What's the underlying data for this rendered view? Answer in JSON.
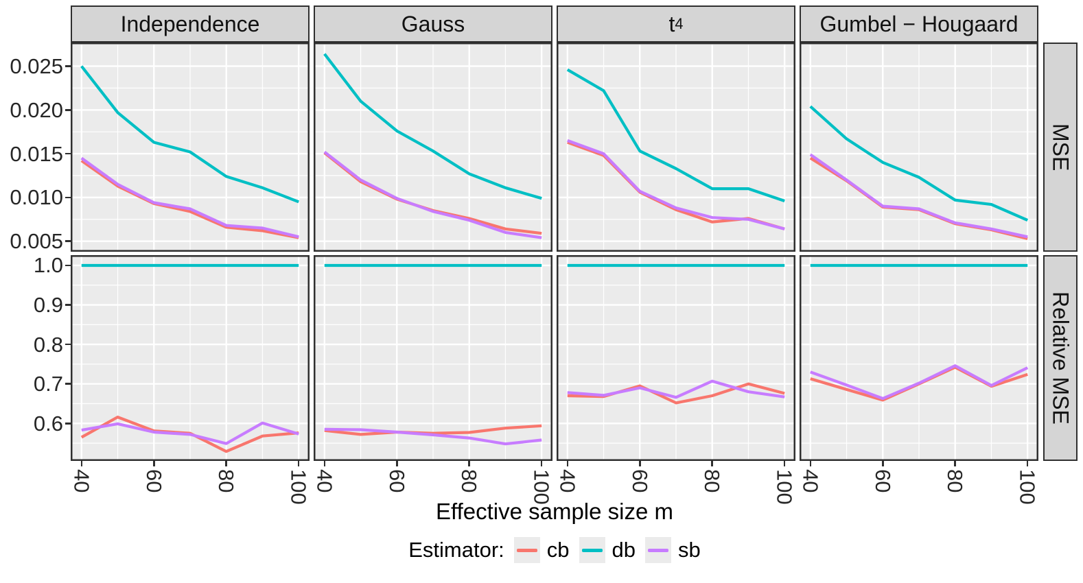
{
  "figure": {
    "x_axis_title": "Effective sample size m",
    "legend_title": "Estimator:",
    "legend": [
      {
        "label": "cb",
        "color": "#F8766D"
      },
      {
        "label": "db",
        "color": "#00BFC4"
      },
      {
        "label": "sb",
        "color": "#C77CFF"
      }
    ],
    "style": {
      "panel_bg": "#EBEBEB",
      "grid_color": "#FFFFFF",
      "panel_border": "#2f2f2f",
      "strip_bg": "#D5D5D5"
    }
  },
  "chart_data": {
    "type": "line",
    "x": [
      40,
      50,
      60,
      70,
      80,
      90,
      100
    ],
    "xlim": [
      37,
      103
    ],
    "x_major_ticks": [
      40,
      60,
      80,
      100
    ],
    "x_major_tick_labels": [
      "40",
      "60",
      "80",
      "100"
    ],
    "x_minor_gridlines": [
      50,
      70,
      90
    ],
    "xlabel": "Effective sample size m",
    "legend_position": "bottom",
    "grid": "on",
    "columns": [
      {
        "text": "Independence"
      },
      {
        "text": "Gauss"
      },
      {
        "text": "t",
        "subscript": "4"
      },
      {
        "text": "Gumbel − Hougaard"
      }
    ],
    "rows": [
      {
        "label": "MSE",
        "ylim": [
          0.0038,
          0.0277
        ],
        "yticks": [
          0.005,
          0.01,
          0.015,
          0.02,
          0.025
        ],
        "ytick_labels": [
          "0.005",
          "0.010",
          "0.015",
          "0.020",
          "0.025"
        ],
        "yminor": [
          0.0075,
          0.0125,
          0.0175,
          0.0225,
          0.0275
        ]
      },
      {
        "label": "Relative MSE",
        "ylim": [
          0.505,
          1.026
        ],
        "yticks": [
          0.6,
          0.7,
          0.8,
          0.9,
          1.0
        ],
        "ytick_labels": [
          "0.6",
          "0.7",
          "0.8",
          "0.9",
          "1.0"
        ],
        "yminor": [
          0.55,
          0.65,
          0.75,
          0.85,
          0.95
        ]
      }
    ],
    "series_order": [
      "cb",
      "db",
      "sb"
    ],
    "panels": [
      {
        "column": "Independence",
        "row": "MSE",
        "col_index": 0,
        "row_index": 0,
        "series": {
          "cb": [
            0.0142,
            0.0113,
            0.0093,
            0.0084,
            0.0066,
            0.0062,
            0.0054
          ],
          "db": [
            0.025,
            0.0197,
            0.0163,
            0.0152,
            0.0124,
            0.0111,
            0.0095
          ],
          "sb": [
            0.0145,
            0.0115,
            0.0094,
            0.0087,
            0.0068,
            0.0065,
            0.0055
          ]
        }
      },
      {
        "column": "Gauss",
        "row": "MSE",
        "col_index": 1,
        "row_index": 0,
        "series": {
          "cb": [
            0.0151,
            0.0118,
            0.0098,
            0.0085,
            0.0076,
            0.0064,
            0.0059
          ],
          "db": [
            0.0264,
            0.021,
            0.0176,
            0.0153,
            0.0127,
            0.0111,
            0.0099
          ],
          "sb": [
            0.0152,
            0.012,
            0.0099,
            0.0084,
            0.0074,
            0.006,
            0.0054
          ]
        }
      },
      {
        "column": "t4",
        "row": "MSE",
        "col_index": 2,
        "row_index": 0,
        "series": {
          "cb": [
            0.0163,
            0.0148,
            0.0106,
            0.0086,
            0.0072,
            0.0076,
            0.0064
          ],
          "db": [
            0.0246,
            0.0222,
            0.0153,
            0.0133,
            0.011,
            0.011,
            0.0096
          ],
          "sb": [
            0.0165,
            0.015,
            0.0107,
            0.0088,
            0.0077,
            0.0075,
            0.0064
          ]
        }
      },
      {
        "column": "Gumbel-Hougaard",
        "row": "MSE",
        "col_index": 3,
        "row_index": 0,
        "series": {
          "cb": [
            0.0145,
            0.0119,
            0.0089,
            0.0086,
            0.007,
            0.0063,
            0.0053
          ],
          "db": [
            0.0204,
            0.0167,
            0.014,
            0.0123,
            0.0097,
            0.0092,
            0.0074
          ],
          "sb": [
            0.0149,
            0.012,
            0.009,
            0.0087,
            0.0071,
            0.0064,
            0.0055
          ]
        }
      },
      {
        "column": "Independence",
        "row": "Relative MSE",
        "col_index": 0,
        "row_index": 1,
        "series": {
          "cb": [
            0.565,
            0.616,
            0.581,
            0.575,
            0.529,
            0.568,
            0.576
          ],
          "db": [
            1.0,
            1.0,
            1.0,
            1.0,
            1.0,
            1.0,
            1.0
          ],
          "sb": [
            0.583,
            0.599,
            0.578,
            0.572,
            0.549,
            0.601,
            0.573
          ]
        }
      },
      {
        "column": "Gauss",
        "row": "Relative MSE",
        "col_index": 1,
        "row_index": 1,
        "series": {
          "cb": [
            0.582,
            0.572,
            0.578,
            0.575,
            0.577,
            0.588,
            0.594
          ],
          "db": [
            1.0,
            1.0,
            1.0,
            1.0,
            1.0,
            1.0,
            1.0
          ],
          "sb": [
            0.585,
            0.584,
            0.578,
            0.571,
            0.563,
            0.548,
            0.558
          ]
        }
      },
      {
        "column": "t4",
        "row": "Relative MSE",
        "col_index": 2,
        "row_index": 1,
        "series": {
          "cb": [
            0.67,
            0.668,
            0.695,
            0.652,
            0.67,
            0.7,
            0.676
          ],
          "db": [
            1.0,
            1.0,
            1.0,
            1.0,
            1.0,
            1.0,
            1.0
          ],
          "sb": [
            0.678,
            0.671,
            0.69,
            0.666,
            0.707,
            0.68,
            0.667
          ]
        }
      },
      {
        "column": "Gumbel-Hougaard",
        "row": "Relative MSE",
        "col_index": 3,
        "row_index": 1,
        "series": {
          "cb": [
            0.713,
            0.686,
            0.659,
            0.7,
            0.742,
            0.694,
            0.724
          ],
          "db": [
            1.0,
            1.0,
            1.0,
            1.0,
            1.0,
            1.0,
            1.0
          ],
          "sb": [
            0.73,
            0.697,
            0.663,
            0.702,
            0.746,
            0.696,
            0.741
          ]
        }
      }
    ]
  }
}
